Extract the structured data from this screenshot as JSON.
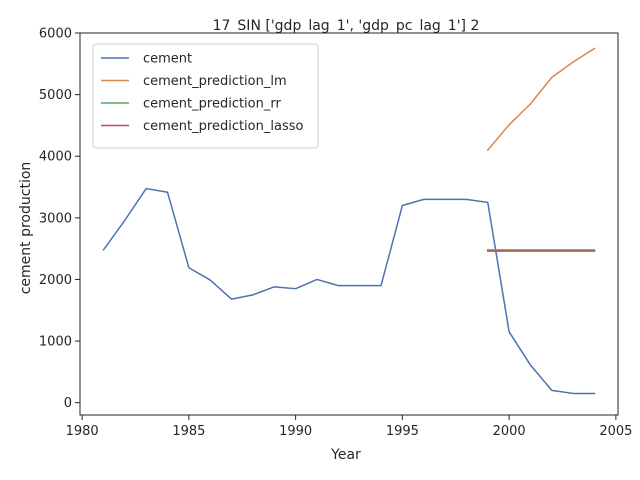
{
  "chart_data": {
    "type": "line",
    "title": "17_SIN ['gdp_lag_1', 'gdp_pc_lag_1'] 2",
    "xlabel": "Year",
    "ylabel": "cement production",
    "xlim": [
      1979.9,
      2005.1
    ],
    "ylim": [
      -200,
      6000
    ],
    "xticks": [
      1980,
      1985,
      1990,
      1995,
      2000,
      2005
    ],
    "yticks": [
      0,
      1000,
      2000,
      3000,
      4000,
      5000,
      6000
    ],
    "xtick_labels": [
      "1980",
      "1985",
      "1990",
      "1995",
      "2000",
      "2005"
    ],
    "ytick_labels": [
      "0",
      "1000",
      "2000",
      "3000",
      "4000",
      "5000",
      "6000"
    ],
    "grid": false,
    "legend_position": "top-left",
    "series": [
      {
        "name": "cement",
        "color": "#4c72b0",
        "x": [
          1981,
          1982,
          1983,
          1984,
          1985,
          1986,
          1987,
          1988,
          1989,
          1990,
          1991,
          1992,
          1993,
          1994,
          1995,
          1996,
          1997,
          1998,
          1999,
          2000,
          2001,
          2002,
          2003,
          2004
        ],
        "y": [
          2480,
          2960,
          3475,
          3415,
          2190,
          1990,
          1680,
          1750,
          1880,
          1850,
          2000,
          1900,
          1900,
          1900,
          3200,
          3300,
          3300,
          3300,
          3250,
          1150,
          610,
          200,
          150,
          150
        ]
      },
      {
        "name": "cement_prediction_lm",
        "color": "#dd8452",
        "x": [
          1999,
          2000,
          2001,
          2002,
          2003,
          2004
        ],
        "y": [
          4100,
          4510,
          4850,
          5280,
          5530,
          5750
        ]
      },
      {
        "name": "cement_prediction_rr",
        "color": "#55a868",
        "x": [
          1999,
          2000,
          2001,
          2002,
          2003,
          2004
        ],
        "y": [
          2480,
          2480,
          2480,
          2480,
          2480,
          2480
        ]
      },
      {
        "name": "cement_prediction_lasso",
        "color": "#c44e52",
        "x": [
          1999,
          2000,
          2001,
          2002,
          2003,
          2004
        ],
        "y": [
          2460,
          2460,
          2460,
          2460,
          2460,
          2460
        ]
      }
    ]
  }
}
